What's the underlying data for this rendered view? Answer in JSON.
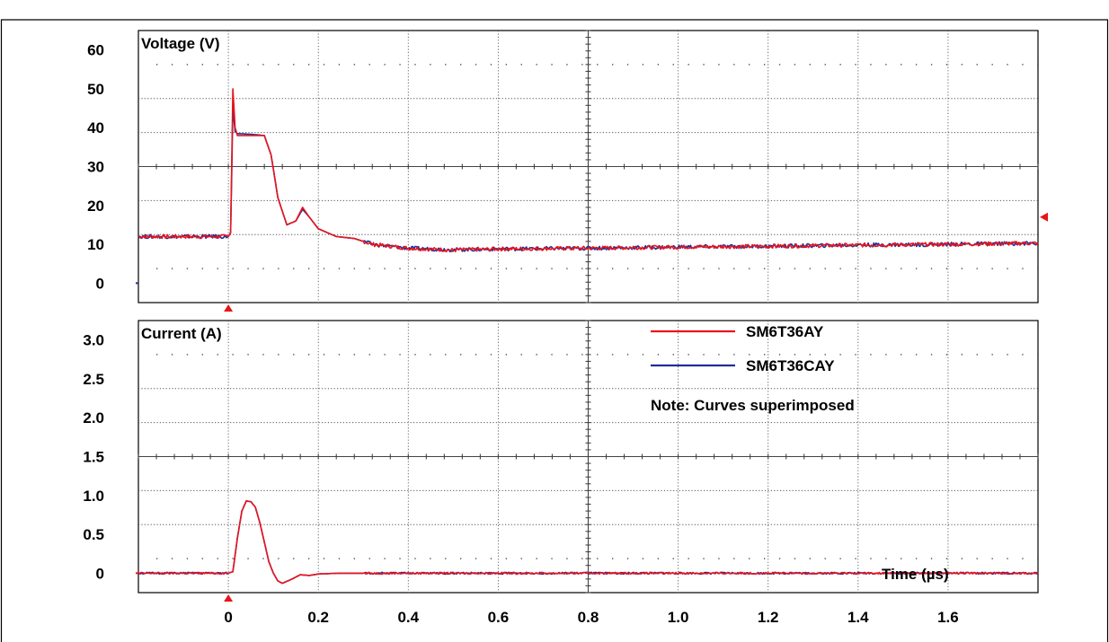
{
  "chart_data": [
    {
      "type": "line",
      "panel": "voltage",
      "title": "Voltage (V)",
      "ylabels": [
        "60",
        "50",
        "40",
        "30",
        "20",
        "10",
        "0"
      ],
      "yticks": [
        60,
        50,
        40,
        30,
        20,
        10,
        0
      ],
      "ylim": [
        -5,
        65
      ],
      "xlim": [
        -0.2,
        1.8
      ],
      "x": [
        -0.2,
        0.0,
        0.005,
        0.01,
        0.015,
        0.02,
        0.05,
        0.08,
        0.095,
        0.11,
        0.13,
        0.15,
        0.165,
        0.18,
        0.2,
        0.24,
        0.28,
        0.32,
        0.36,
        0.4,
        0.5,
        0.6,
        0.8,
        1.0,
        1.2,
        1.4,
        1.6,
        1.8
      ],
      "series": [
        {
          "name": "SM6T36AY",
          "color": "#e8141b",
          "values": [
            12,
            12,
            13,
            50,
            40,
            38,
            38,
            38,
            33,
            22,
            15,
            16,
            19.5,
            17,
            14,
            12,
            11.5,
            10,
            9.5,
            9,
            8.5,
            8.8,
            9,
            9.3,
            9.5,
            9.8,
            10,
            10.3
          ]
        },
        {
          "name": "SM6T36CAY",
          "color": "#1e2f9a",
          "values": [
            12,
            12,
            13,
            45,
            39,
            38.5,
            38.3,
            38,
            33,
            22,
            15,
            16,
            19,
            17,
            14,
            12,
            11.5,
            10,
            9.5,
            9,
            8.6,
            8.8,
            9,
            9.3,
            9.5,
            9.8,
            10,
            10.3
          ]
        }
      ],
      "markers": {
        "y_right": 17
      }
    },
    {
      "type": "line",
      "panel": "current",
      "title": "Current (A)",
      "ylabels": [
        "3.0",
        "2.5",
        "2.0",
        "1.5",
        "1.0",
        "0.5",
        "0"
      ],
      "yticks": [
        3.0,
        2.5,
        2.0,
        1.5,
        1.0,
        0.5,
        0
      ],
      "ylim": [
        -0.25,
        3.25
      ],
      "xlim": [
        -0.2,
        1.8
      ],
      "xlabel": "Time (µs)",
      "xticklabels": [
        "0",
        "0.2",
        "0.4",
        "0.6",
        "0.8",
        "1.0",
        "1.2",
        "1.4",
        "1.6"
      ],
      "xticks": [
        0,
        0.2,
        0.4,
        0.6,
        0.8,
        1.0,
        1.2,
        1.4,
        1.6
      ],
      "x": [
        -0.2,
        0.0,
        0.01,
        0.02,
        0.03,
        0.04,
        0.05,
        0.06,
        0.07,
        0.08,
        0.09,
        0.1,
        0.11,
        0.12,
        0.14,
        0.16,
        0.18,
        0.2,
        0.25,
        0.4,
        0.8,
        1.2,
        1.6,
        1.8
      ],
      "series": [
        {
          "name": "SM6T36AY",
          "color": "#e8141b",
          "values": [
            0,
            0,
            0.02,
            0.45,
            0.8,
            0.93,
            0.92,
            0.85,
            0.65,
            0.4,
            0.15,
            0.0,
            -0.1,
            -0.13,
            -0.08,
            -0.02,
            -0.03,
            -0.01,
            0,
            0,
            0,
            0,
            0,
            0
          ]
        },
        {
          "name": "SM6T36CAY",
          "color": "#1e2f9a",
          "values": [
            0,
            0,
            0.02,
            0.45,
            0.8,
            0.93,
            0.92,
            0.85,
            0.65,
            0.4,
            0.15,
            0.0,
            -0.1,
            -0.13,
            -0.08,
            -0.02,
            -0.03,
            -0.01,
            0,
            0,
            0,
            0,
            0,
            0
          ]
        }
      ],
      "legend": {
        "placement": "top-right",
        "entries": [
          {
            "label": "SM6T36AY",
            "color": "#e8141b"
          },
          {
            "label": "SM6T36CAY",
            "color": "#1e2f9a"
          }
        ],
        "note": "Note: Curves superimposed"
      }
    }
  ]
}
